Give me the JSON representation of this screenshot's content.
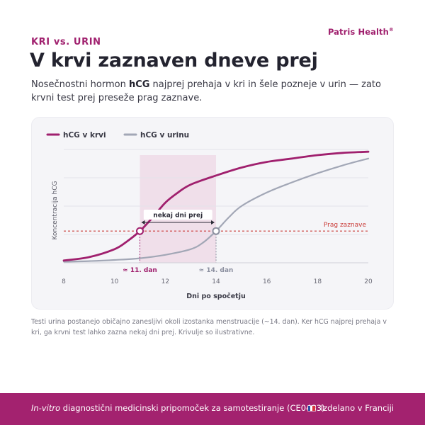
{
  "brand": {
    "name": "Patris Health",
    "mark": "®"
  },
  "header": {
    "eyebrow": "KRI vs. URIN",
    "title": "V krvi zaznaven dneve prej",
    "lede_before": "Nosečnostni hormon ",
    "lede_bold": "hCG",
    "lede_after": " najprej prehaja v kri in šele pozneje v urin — zato krvni test prej preseže prag zaznave."
  },
  "chart_data": {
    "type": "line",
    "xlabel": "Dni po spočetju",
    "ylabel": "Koncentracija hCG",
    "xlim": [
      8,
      20
    ],
    "ylim": [
      0,
      1
    ],
    "xticks": [
      8,
      10,
      12,
      14,
      16,
      18,
      20
    ],
    "grid": true,
    "legend_position": "top-left",
    "series": [
      {
        "name": "hCG v krvi",
        "color": "#a0206e",
        "x": [
          8,
          9,
          10,
          10.5,
          11,
          11.5,
          12,
          12.5,
          13,
          14,
          15,
          16,
          17,
          18,
          19,
          20
        ],
        "y": [
          0.02,
          0.05,
          0.12,
          0.19,
          0.28,
          0.4,
          0.53,
          0.62,
          0.69,
          0.77,
          0.84,
          0.89,
          0.92,
          0.95,
          0.97,
          0.98
        ]
      },
      {
        "name": "hCG v urinu",
        "color": "#a2a7b6",
        "x": [
          8,
          9,
          10,
          11,
          12,
          13,
          13.5,
          14,
          14.5,
          15,
          16,
          17,
          18,
          19,
          20
        ],
        "y": [
          0.01,
          0.015,
          0.025,
          0.04,
          0.07,
          0.12,
          0.18,
          0.28,
          0.4,
          0.5,
          0.62,
          0.71,
          0.79,
          0.86,
          0.92
        ]
      }
    ],
    "threshold": {
      "label": "Prag zaznave",
      "value": 0.28,
      "color": "#c93a36"
    },
    "highlight_band": {
      "from": 11,
      "to": 14
    },
    "interval_label": "nekaj dni prej",
    "markers": [
      {
        "x": 11,
        "label": "≈ 11. dan",
        "color": "#a0206e"
      },
      {
        "x": 14,
        "label": "≈ 14. dan",
        "color": "#8c90a0"
      }
    ]
  },
  "footnote": "Testi urina postanejo običajno zanesljivi okoli izostanka menstruacije (~14. dan). Ker hCG najprej prehaja v kri, ga krvni test lahko zazna nekaj dni prej. Krivulje so ilustrativne.",
  "footer": {
    "left_italic": "In-vitro",
    "left_rest": " diagnostični medicinski pripomoček za samotestiranje (CE0483)",
    "right": "Izdelano v Franciji",
    "flag_colors": [
      "#2a4fa3",
      "#ffffff",
      "#d8343b"
    ]
  }
}
